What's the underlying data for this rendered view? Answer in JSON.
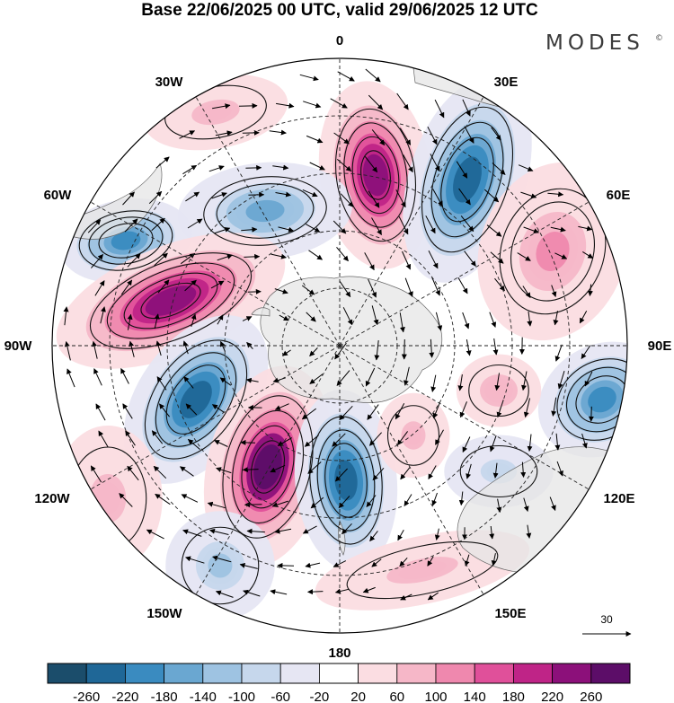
{
  "header": {
    "title": "Base 22/06/2025 00 UTC, valid 29/06/2025 12 UTC",
    "brand": "MODES",
    "brand_mark": "©"
  },
  "map": {
    "projection": "polar-stereographic-south",
    "longitude_labels": [
      {
        "key": "lon-0",
        "label": "0"
      },
      {
        "key": "lon-30e",
        "label": "30E"
      },
      {
        "key": "lon-60e",
        "label": "60E"
      },
      {
        "key": "lon-90e",
        "label": "90E"
      },
      {
        "key": "lon-120e",
        "label": "120E"
      },
      {
        "key": "lon-150e",
        "label": "150E"
      },
      {
        "key": "lon-180",
        "label": "180"
      },
      {
        "key": "lon-150w",
        "label": "150W"
      },
      {
        "key": "lon-120w",
        "label": "120W"
      },
      {
        "key": "lon-90w",
        "label": "90W"
      },
      {
        "key": "lon-60w",
        "label": "60W"
      },
      {
        "key": "lon-30w",
        "label": "30W"
      }
    ],
    "reference_vector": {
      "label": "30"
    }
  },
  "colorbar": {
    "colors": [
      "#1b4d6b",
      "#1f6797",
      "#3a8bc0",
      "#6aa7d1",
      "#9ec3e2",
      "#c6d7ec",
      "#e6e6f3",
      "#ffffff",
      "#fbdde2",
      "#f6b7c8",
      "#ef88ae",
      "#e0509a",
      "#bf2487",
      "#8c107a",
      "#5c0d68"
    ],
    "tick_labels": [
      "-260",
      "-220",
      "-180",
      "-140",
      "-100",
      "-60",
      "-20",
      "20",
      "60",
      "100",
      "140",
      "180",
      "220",
      "260"
    ]
  },
  "anomaly_centers": [
    {
      "key": "pos-south-atlantic",
      "sign": "positive",
      "amplitude": 260
    },
    {
      "key": "neg-30e",
      "sign": "negative",
      "amplitude": -240
    },
    {
      "key": "pos-60e",
      "sign": "positive",
      "amplitude": 120
    },
    {
      "key": "neg-45w",
      "sign": "negative",
      "amplitude": -160
    },
    {
      "key": "neg-65w",
      "sign": "negative",
      "amplitude": -200
    },
    {
      "key": "pos-drake",
      "sign": "positive",
      "amplitude": 260
    },
    {
      "key": "neg-120w",
      "sign": "negative",
      "amplitude": -240
    },
    {
      "key": "pos-150w",
      "sign": "positive",
      "amplitude": 270
    },
    {
      "key": "neg-170w",
      "sign": "negative",
      "amplitude": -240
    },
    {
      "key": "neg-90e",
      "sign": "negative",
      "amplitude": -200
    },
    {
      "key": "pos-100e",
      "sign": "positive",
      "amplitude": 100
    },
    {
      "key": "neg-115e",
      "sign": "negative",
      "amplitude": -80
    },
    {
      "key": "pos-150e",
      "sign": "positive",
      "amplitude": 80
    },
    {
      "key": "neg-150w-outer",
      "sign": "negative",
      "amplitude": -100
    },
    {
      "key": "pos-120w-outer",
      "sign": "positive",
      "amplitude": 80
    },
    {
      "key": "pos-30w-outer",
      "sign": "positive",
      "amplitude": 80
    },
    {
      "key": "pos-160e-inner",
      "sign": "positive",
      "amplitude": 80
    }
  ]
}
